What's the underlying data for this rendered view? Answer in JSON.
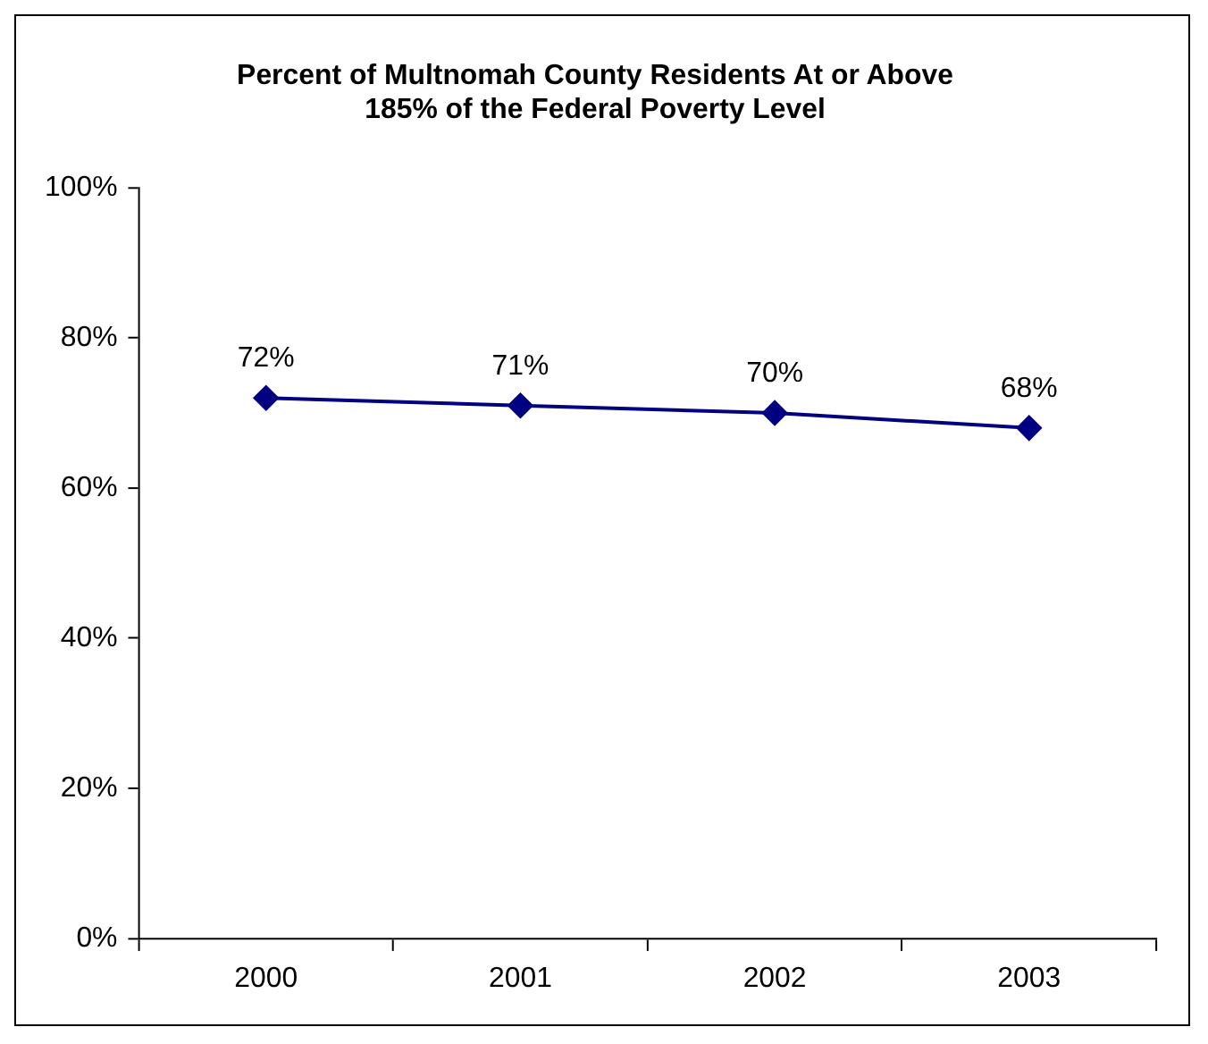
{
  "chart_data": {
    "type": "line",
    "title": "Percent of Multnomah County Residents At or Above\n185% of the Federal Poverty Level",
    "categories": [
      "2000",
      "2001",
      "2002",
      "2003"
    ],
    "series": [
      {
        "color": "#000080",
        "values": [
          72,
          71,
          70,
          68
        ],
        "value_labels": [
          "72%",
          "71%",
          "70%",
          "68%"
        ]
      }
    ],
    "ylim": [
      0,
      100
    ],
    "yticks": [
      {
        "value": 0,
        "label": "0%"
      },
      {
        "value": 20,
        "label": "20%"
      },
      {
        "value": 40,
        "label": "40%"
      },
      {
        "value": 60,
        "label": "60%"
      },
      {
        "value": 80,
        "label": "80%"
      },
      {
        "value": 100,
        "label": "100%"
      }
    ],
    "grid": false,
    "legend": false,
    "marker": "diamond",
    "line_style": "solid"
  }
}
